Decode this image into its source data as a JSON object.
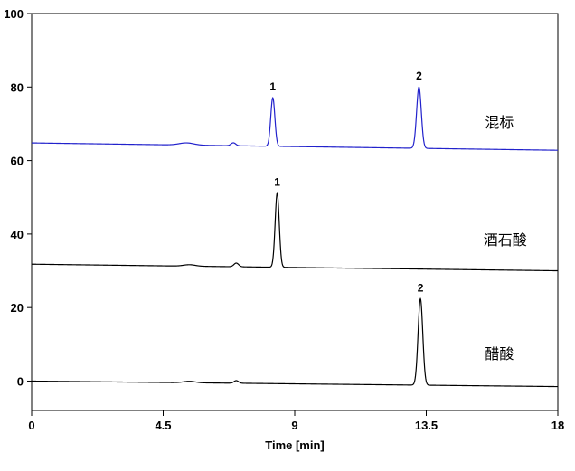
{
  "chart_data": {
    "type": "line",
    "xlabel": "Time [min]",
    "ylabel": "",
    "xlim": [
      0,
      18
    ],
    "ylim": [
      -8,
      100
    ],
    "x_ticks": [
      {
        "value": 0,
        "label": "0"
      },
      {
        "value": 4.5,
        "label": "4.5"
      },
      {
        "value": 9,
        "label": "9"
      },
      {
        "value": 13.5,
        "label": "13.5"
      },
      {
        "value": 18,
        "label": "18"
      }
    ],
    "y_ticks": [
      {
        "value": 0,
        "label": "0"
      },
      {
        "value": 20,
        "label": "20"
      },
      {
        "value": 40,
        "label": "40"
      },
      {
        "value": 60,
        "label": "60"
      },
      {
        "value": 80,
        "label": "80"
      },
      {
        "value": 100,
        "label": "100"
      }
    ],
    "grid": false,
    "legend": "none",
    "series": [
      {
        "name": "混标",
        "color": "#2222cc",
        "baseline_start": 64.8,
        "baseline_end": 62.8,
        "bumps": [
          {
            "t": 5.3,
            "h": 0.6,
            "w": 0.25
          },
          {
            "t": 6.9,
            "h": 0.8,
            "w": 0.08
          }
        ],
        "peaks": [
          {
            "t": 8.25,
            "h": 13.2,
            "w": 0.07,
            "label": "1"
          },
          {
            "t": 13.25,
            "h": 16.7,
            "w": 0.08,
            "label": "2"
          }
        ],
        "label_pos": {
          "t": 16.0,
          "y": 69
        }
      },
      {
        "name": "酒石酸",
        "color": "#000000",
        "baseline_start": 31.8,
        "baseline_end": 30.0,
        "bumps": [
          {
            "t": 5.4,
            "h": 0.4,
            "w": 0.2
          },
          {
            "t": 7.0,
            "h": 1.0,
            "w": 0.08
          }
        ],
        "peaks": [
          {
            "t": 8.4,
            "h": 20.2,
            "w": 0.07,
            "label": "1"
          }
        ],
        "label_pos": {
          "t": 16.2,
          "y": 37
        }
      },
      {
        "name": "醋酸",
        "color": "#000000",
        "baseline_start": 0.0,
        "baseline_end": -1.5,
        "bumps": [
          {
            "t": 5.4,
            "h": 0.4,
            "w": 0.2
          },
          {
            "t": 7.0,
            "h": 0.7,
            "w": 0.08
          }
        ],
        "peaks": [
          {
            "t": 13.3,
            "h": 23.5,
            "w": 0.08,
            "label": "2"
          }
        ],
        "label_pos": {
          "t": 16.0,
          "y": 6
        }
      }
    ]
  }
}
